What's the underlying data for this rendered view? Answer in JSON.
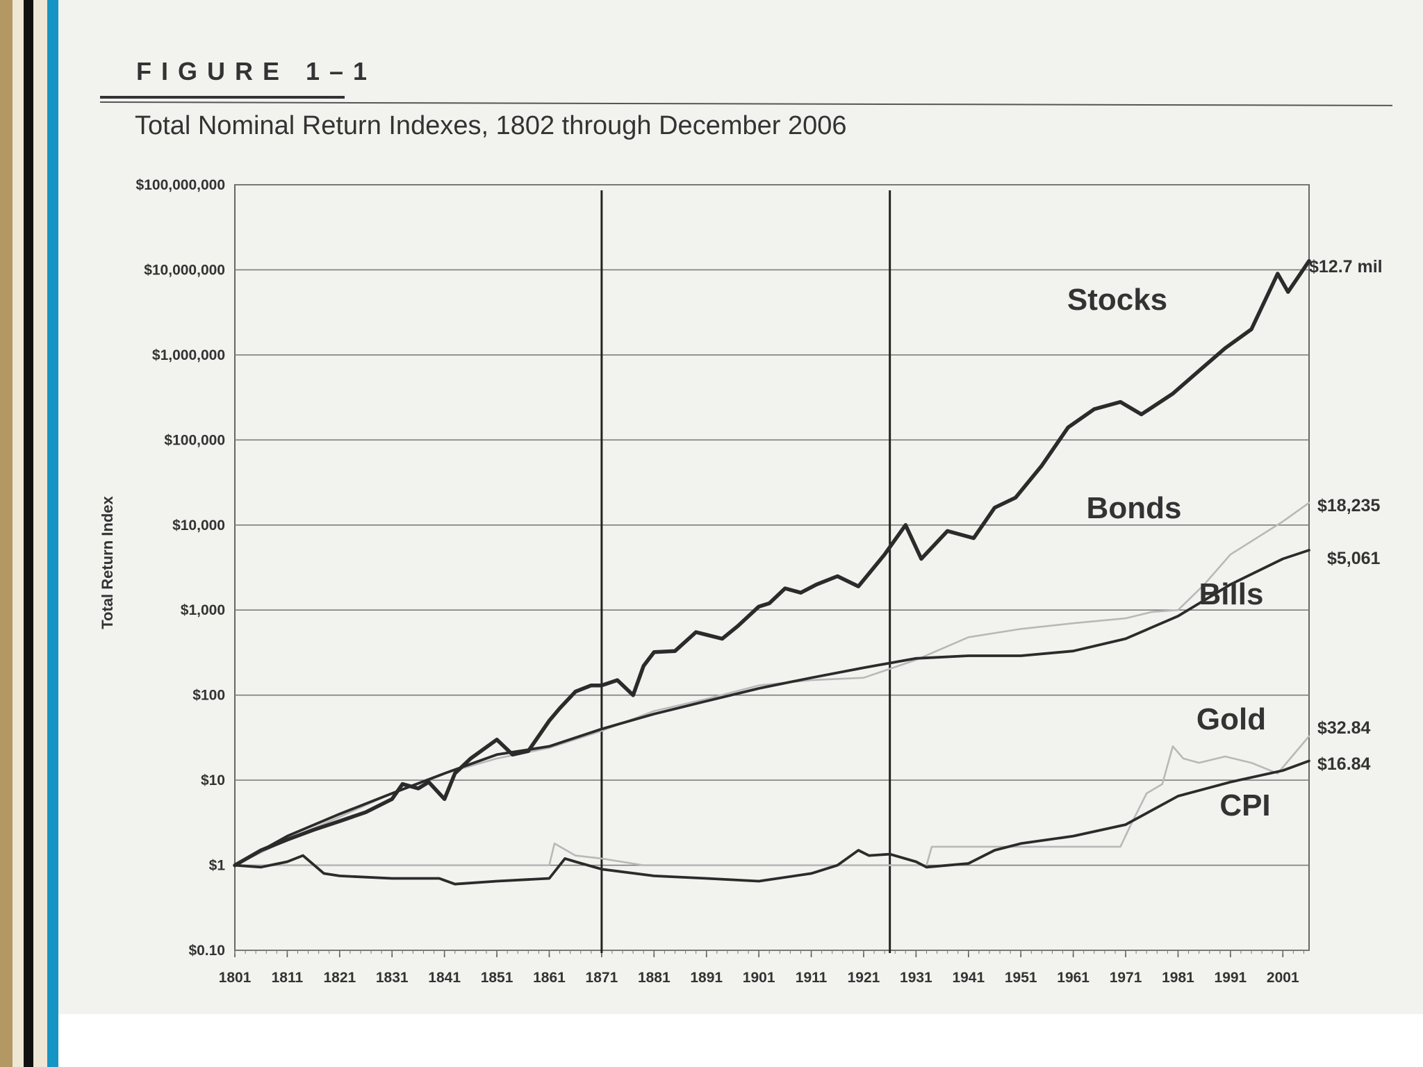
{
  "figure_label": "FIGURE 1–1",
  "figure_title": "Total Nominal Return Indexes, 1802 through December 2006",
  "colors": {
    "frame_blue": "#1595c4",
    "frame_black": "#111111",
    "frame_gold": "#b49863",
    "stocks": "#2b2b2b",
    "bills": "#2b2b2b",
    "cpi": "#2b2b2b",
    "bonds": "#b8b8b8",
    "gold": "#b8b8b8"
  },
  "chart_data": {
    "type": "line",
    "ylabel": "Total Return Index",
    "yscale": "log",
    "ylim": [
      0.1,
      100000000
    ],
    "xlim": [
      1801,
      2006
    ],
    "grid": true,
    "yticks": [
      {
        "value": 0.1,
        "label": "$0.10"
      },
      {
        "value": 1,
        "label": "$1"
      },
      {
        "value": 10,
        "label": "$10"
      },
      {
        "value": 100,
        "label": "$100"
      },
      {
        "value": 1000,
        "label": "$1,000"
      },
      {
        "value": 10000,
        "label": "$10,000"
      },
      {
        "value": 100000,
        "label": "$100,000"
      },
      {
        "value": 1000000,
        "label": "$1,000,000"
      },
      {
        "value": 10000000,
        "label": "$10,000,000"
      },
      {
        "value": 100000000,
        "label": "$100,000,000"
      }
    ],
    "xticks": [
      "1801",
      "1811",
      "1821",
      "1831",
      "1841",
      "1851",
      "1861",
      "1871",
      "1881",
      "1891",
      "1901",
      "1911",
      "1921",
      "1931",
      "1941",
      "1951",
      "1961",
      "1971",
      "1981",
      "1991",
      "2001"
    ],
    "vertical_markers": [
      1871,
      1926
    ],
    "series": [
      {
        "name": "Stocks",
        "end_label": "$12.7 mil",
        "style": "thick",
        "x": [
          1801,
          1806,
          1811,
          1816,
          1821,
          1826,
          1831,
          1833,
          1836,
          1838,
          1841,
          1843,
          1846,
          1851,
          1854,
          1857,
          1861,
          1863,
          1866,
          1869,
          1871,
          1874,
          1877,
          1879,
          1881,
          1885,
          1889,
          1894,
          1897,
          1901,
          1903,
          1906,
          1909,
          1912,
          1916,
          1920,
          1925,
          1929,
          1932,
          1937,
          1942,
          1946,
          1950,
          1955,
          1960,
          1965,
          1970,
          1974,
          1980,
          1985,
          1990,
          1995,
          2000,
          2002,
          2006
        ],
        "y": [
          1,
          1.5,
          2,
          2.6,
          3.3,
          4.2,
          6,
          9,
          8,
          9.5,
          6,
          12,
          18,
          30,
          20,
          22,
          50,
          70,
          110,
          130,
          130,
          150,
          100,
          220,
          320,
          330,
          550,
          460,
          650,
          1100,
          1200,
          1800,
          1600,
          2000,
          2500,
          1900,
          4500,
          10000,
          4000,
          8500,
          7000,
          16000,
          21000,
          50000,
          140000,
          230000,
          280000,
          200000,
          350000,
          650000,
          1200000,
          2000000,
          9000000,
          5500000,
          12700000
        ]
      },
      {
        "name": "Bonds",
        "end_label": "$18,235",
        "style": "thin",
        "x": [
          1801,
          1811,
          1821,
          1831,
          1841,
          1851,
          1861,
          1871,
          1881,
          1891,
          1901,
          1911,
          1921,
          1931,
          1941,
          1951,
          1961,
          1971,
          1976,
          1981,
          1986,
          1991,
          2001,
          2006
        ],
        "y": [
          1,
          2,
          3.7,
          7,
          12,
          18,
          24,
          38,
          65,
          90,
          130,
          150,
          160,
          260,
          480,
          600,
          700,
          800,
          950,
          1000,
          2000,
          4500,
          11000,
          18235
        ]
      },
      {
        "name": "Bills",
        "end_label": "$5,061",
        "style": "medium",
        "x": [
          1801,
          1811,
          1821,
          1831,
          1841,
          1851,
          1861,
          1871,
          1881,
          1891,
          1901,
          1911,
          1921,
          1931,
          1941,
          1951,
          1961,
          1971,
          1981,
          1991,
          2001,
          2006
        ],
        "y": [
          1,
          2.2,
          4,
          7,
          12,
          20,
          25,
          40,
          60,
          85,
          120,
          160,
          210,
          270,
          290,
          290,
          330,
          460,
          850,
          2000,
          4000,
          5061
        ]
      },
      {
        "name": "Gold",
        "end_label": "$32.84",
        "style": "thin",
        "x": [
          1801,
          1811,
          1821,
          1831,
          1841,
          1851,
          1861,
          1862,
          1866,
          1871,
          1879,
          1901,
          1921,
          1933,
          1934,
          1970,
          1972,
          1975,
          1978,
          1980,
          1982,
          1985,
          1990,
          1995,
          2000,
          2006
        ],
        "y": [
          1,
          1,
          1,
          1,
          1,
          1,
          1,
          1.8,
          1.3,
          1.2,
          1,
          1,
          1,
          1,
          1.65,
          1.65,
          3,
          7,
          9,
          25,
          18,
          16,
          19,
          16,
          12,
          32.84
        ]
      },
      {
        "name": "CPI",
        "end_label": "$16.84",
        "style": "medium",
        "x": [
          1801,
          1806,
          1811,
          1814,
          1818,
          1821,
          1831,
          1840,
          1843,
          1851,
          1861,
          1864,
          1866,
          1871,
          1881,
          1891,
          1901,
          1911,
          1916,
          1920,
          1922,
          1926,
          1931,
          1933,
          1941,
          1946,
          1951,
          1961,
          1971,
          1981,
          1991,
          2001,
          2006
        ],
        "y": [
          1,
          0.95,
          1.1,
          1.3,
          0.8,
          0.75,
          0.7,
          0.7,
          0.6,
          0.65,
          0.7,
          1.2,
          1.1,
          0.9,
          0.75,
          0.7,
          0.65,
          0.8,
          1.0,
          1.5,
          1.3,
          1.35,
          1.1,
          0.95,
          1.05,
          1.5,
          1.8,
          2.2,
          3.0,
          6.5,
          9.5,
          13,
          16.84
        ]
      }
    ]
  }
}
